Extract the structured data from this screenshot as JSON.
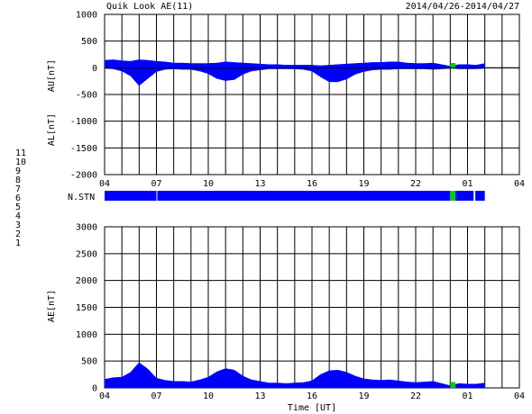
{
  "header": {
    "title": "Quik Look AE(11)",
    "date_range": "2014/04/26-2014/04/27"
  },
  "legend": {
    "items": [
      {
        "label": "11",
        "color": "#00e0e0"
      },
      {
        "label": "10",
        "color": "#ff00ff"
      },
      {
        "label": "9",
        "color": "#0000ff"
      },
      {
        "label": "8",
        "color": "#e8e800"
      },
      {
        "label": "7",
        "color": "#00c000"
      },
      {
        "label": "6",
        "color": "#ff0000"
      },
      {
        "label": "5",
        "color": "#c8c8c8"
      },
      {
        "label": "4",
        "color": "#808080"
      },
      {
        "label": "3",
        "color": "#00a0a0"
      },
      {
        "label": "2",
        "color": "#a000a0"
      },
      {
        "label": "1",
        "color": "#0000a0"
      }
    ]
  },
  "chart_data": [
    {
      "type": "area",
      "ylabel_top": "AU[nT]",
      "ylabel_bottom": "AL[nT]",
      "ylim": [
        -2000,
        1000
      ],
      "yticks": [
        "1000",
        "500",
        "0",
        "-500",
        "-1000",
        "-1500",
        "-2000"
      ],
      "xticks": [
        "04",
        "07",
        "10",
        "13",
        "16",
        "19",
        "22",
        "01",
        "04"
      ],
      "xlim_hours": [
        4,
        28
      ],
      "grid": true,
      "fill_color": "#0000ff",
      "highlight_color": "#00d000",
      "series": [
        {
          "name": "AU",
          "x": [
            4.0,
            4.5,
            5.0,
            5.5,
            6.0,
            6.5,
            7.0,
            7.5,
            8.0,
            8.5,
            9.0,
            9.5,
            10.0,
            10.5,
            11.0,
            11.5,
            12.0,
            12.5,
            13.0,
            13.5,
            14.0,
            14.5,
            15.0,
            15.5,
            16.0,
            16.5,
            17.0,
            17.5,
            18.0,
            18.5,
            19.0,
            19.5,
            20.0,
            20.5,
            21.0,
            21.5,
            22.0,
            22.5,
            23.0,
            23.5,
            24.0,
            24.5,
            25.0,
            25.5,
            26.0
          ],
          "values": [
            140,
            150,
            130,
            120,
            150,
            140,
            120,
            110,
            90,
            90,
            80,
            80,
            80,
            90,
            110,
            100,
            90,
            80,
            70,
            60,
            60,
            50,
            50,
            50,
            50,
            40,
            50,
            60,
            70,
            80,
            90,
            100,
            100,
            110,
            110,
            90,
            80,
            80,
            90,
            60,
            30,
            60,
            60,
            50,
            80
          ]
        },
        {
          "name": "AL",
          "x": [
            4.0,
            4.5,
            5.0,
            5.5,
            6.0,
            6.5,
            7.0,
            7.5,
            8.0,
            8.5,
            9.0,
            9.5,
            10.0,
            10.5,
            11.0,
            11.5,
            12.0,
            12.5,
            13.0,
            13.5,
            14.0,
            14.5,
            15.0,
            15.5,
            16.0,
            16.5,
            17.0,
            17.5,
            18.0,
            18.5,
            19.0,
            19.5,
            20.0,
            20.5,
            21.0,
            21.5,
            22.0,
            22.5,
            23.0,
            23.5,
            24.0,
            24.5,
            25.0,
            25.5,
            26.0
          ],
          "values": [
            -10,
            -20,
            -60,
            -150,
            -330,
            -200,
            -70,
            -30,
            -20,
            -30,
            -30,
            -60,
            -110,
            -200,
            -240,
            -220,
            -120,
            -60,
            -40,
            -20,
            -20,
            -20,
            -20,
            -30,
            -60,
            -170,
            -260,
            -260,
            -210,
            -120,
            -70,
            -40,
            -30,
            -30,
            -20,
            -20,
            -20,
            -20,
            -30,
            -20,
            -10,
            -20,
            -20,
            -20,
            -10
          ]
        }
      ],
      "highlight_x": [
        24.0,
        24.3
      ]
    },
    {
      "type": "bar",
      "label": "N.STN",
      "xlim_hours": [
        4,
        28
      ],
      "segments": [
        {
          "from": 4.0,
          "to": 7.0,
          "stations": 9
        },
        {
          "from": 7.05,
          "to": 24.0,
          "stations": 9
        },
        {
          "from": 24.0,
          "to": 24.3,
          "stations": 7
        },
        {
          "from": 24.3,
          "to": 25.35,
          "stations": 9
        },
        {
          "from": 25.45,
          "to": 26.0,
          "stations": 9
        }
      ]
    },
    {
      "type": "area",
      "ylabel": "AE[nT]",
      "ylim": [
        0,
        3000
      ],
      "yticks": [
        "3000",
        "2500",
        "2000",
        "1500",
        "1000",
        "500",
        "0"
      ],
      "xticks": [
        "04",
        "07",
        "10",
        "13",
        "16",
        "19",
        "22",
        "01",
        "04"
      ],
      "xlabel": "Time [UT]",
      "xlim_hours": [
        4,
        28
      ],
      "grid": true,
      "series": [
        {
          "name": "AE",
          "x": [
            4.0,
            4.5,
            5.0,
            5.5,
            6.0,
            6.5,
            7.0,
            7.5,
            8.0,
            8.5,
            9.0,
            9.5,
            10.0,
            10.5,
            11.0,
            11.5,
            12.0,
            12.5,
            13.0,
            13.5,
            14.0,
            14.5,
            15.0,
            15.5,
            16.0,
            16.5,
            17.0,
            17.5,
            18.0,
            18.5,
            19.0,
            19.5,
            20.0,
            20.5,
            21.0,
            21.5,
            22.0,
            22.5,
            23.0,
            23.5,
            24.0,
            24.5,
            25.0,
            25.5,
            26.0
          ],
          "values": [
            160,
            190,
            200,
            290,
            470,
            350,
            180,
            140,
            120,
            120,
            110,
            150,
            200,
            300,
            360,
            330,
            220,
            150,
            120,
            90,
            90,
            80,
            90,
            100,
            130,
            250,
            320,
            330,
            290,
            220,
            170,
            150,
            140,
            150,
            130,
            110,
            100,
            110,
            120,
            80,
            40,
            80,
            70,
            70,
            90
          ]
        }
      ],
      "highlight_x": [
        24.0,
        24.3
      ]
    }
  ]
}
